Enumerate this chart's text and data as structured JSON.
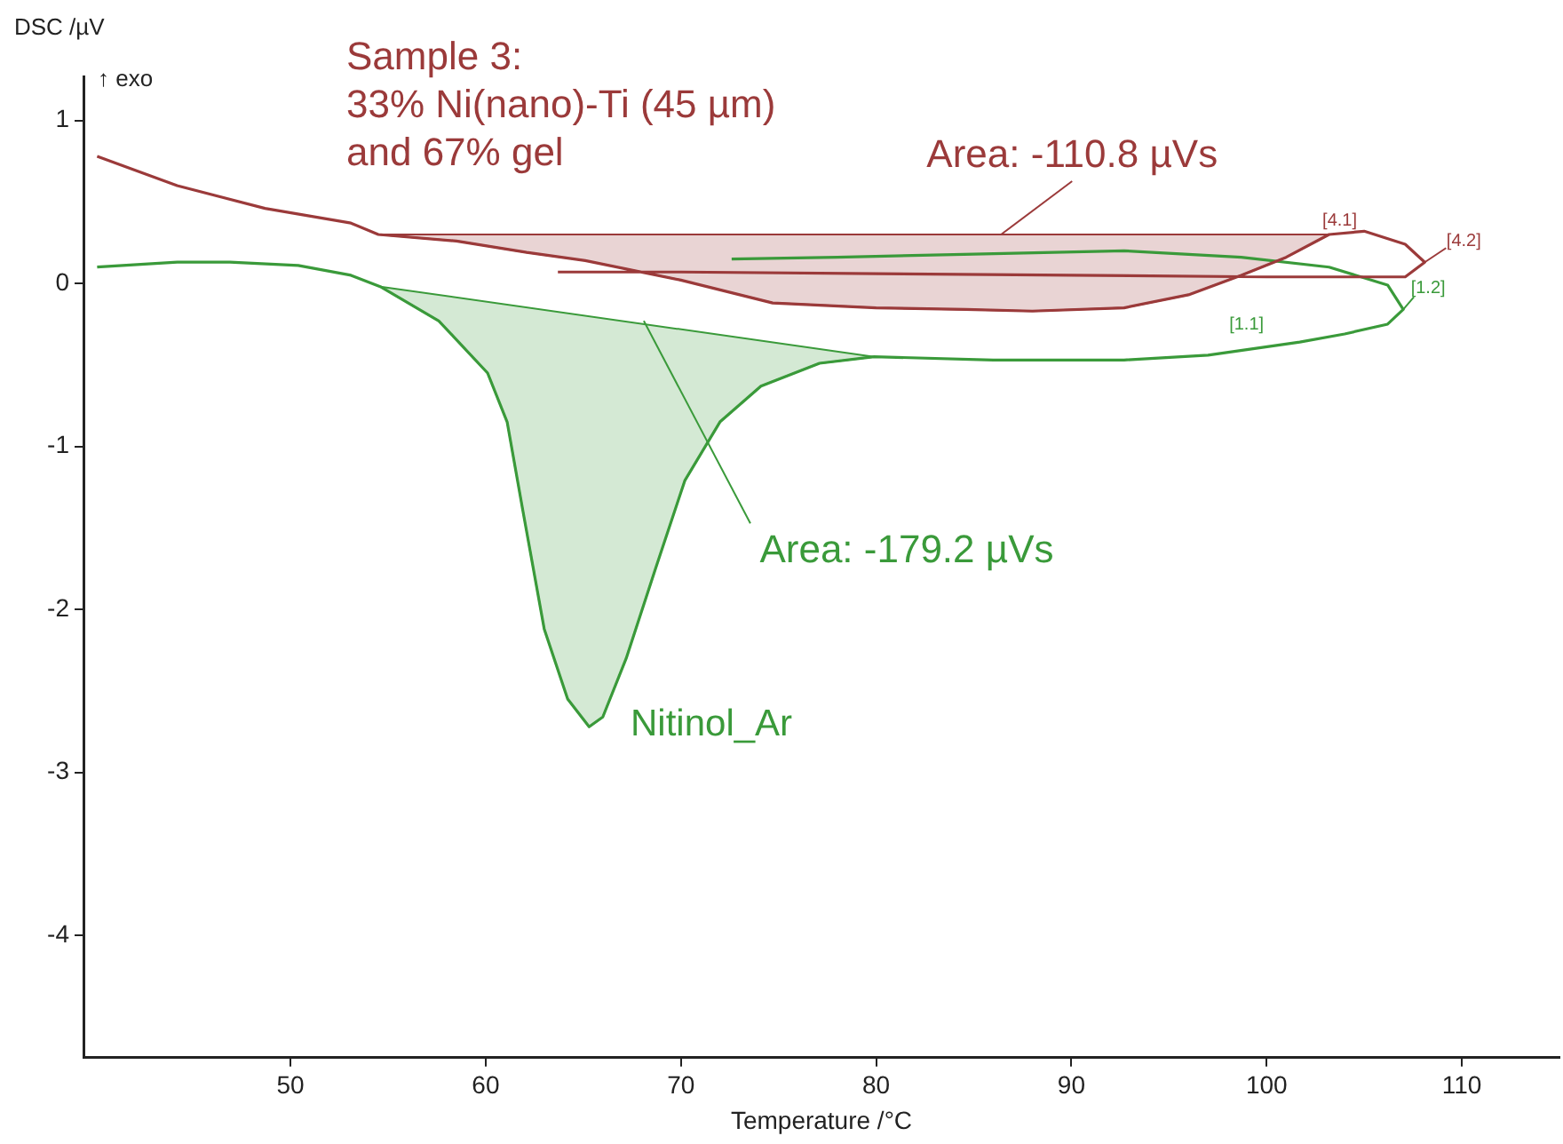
{
  "chart_data": {
    "type": "scatter",
    "xlabel": "Temperature /°C",
    "ylabel": "DSC /µV",
    "xlim": [
      39.4,
      115
    ],
    "ylim": [
      -4.75,
      1.27
    ],
    "xticks": [
      50,
      60,
      70,
      80,
      90,
      100,
      110
    ],
    "yticks": [
      -4,
      -3,
      -2,
      -1,
      0,
      1
    ],
    "grid": false,
    "legend": false,
    "line_style": "solid",
    "marker": "none",
    "series": [
      {
        "type": "line",
        "name": "Sample 3:\n33% Ni(nano)-Ti (45 µm)\nand 67% gel",
        "color": "#9b3a3a",
        "x": [
          40.1,
          44.2,
          48.7,
          53.1,
          54.5,
          58.5,
          62.1,
          65.1,
          70,
          74.7,
          80,
          84.6,
          88,
          92.7,
          96,
          98.7,
          101,
          103.2,
          105,
          107.1,
          108.1,
          107.1,
          100,
          90,
          80,
          70,
          63.7
        ],
        "values": [
          0.78,
          0.6,
          0.46,
          0.37,
          0.3,
          0.26,
          0.19,
          0.14,
          0.02,
          -0.12,
          -0.15,
          -0.16,
          -0.17,
          -0.15,
          -0.07,
          0.05,
          0.16,
          0.3,
          0.32,
          0.24,
          0.13,
          0.04,
          0.04,
          0.05,
          0.06,
          0.07,
          0.07
        ]
      },
      {
        "type": "line",
        "name": "Nitinol_Ar",
        "color": "#3a9a3a",
        "x": [
          40.1,
          44.2,
          46.9,
          50.4,
          53.1,
          54.6,
          57.6,
          60.1,
          61.1,
          61.9,
          63,
          64.2,
          65.3,
          66,
          67.2,
          68.7,
          70.2,
          72,
          74.1,
          77.1,
          79.9,
          86,
          92.7,
          97,
          101.7,
          104,
          106.2,
          107,
          106.2,
          103.2,
          98.7,
          92.7,
          85,
          78,
          72.6
        ],
        "values": [
          0.1,
          0.13,
          0.13,
          0.11,
          0.05,
          -0.02,
          -0.23,
          -0.55,
          -0.85,
          -1.39,
          -2.12,
          -2.55,
          -2.72,
          -2.66,
          -2.3,
          -1.75,
          -1.21,
          -0.85,
          -0.63,
          -0.49,
          -0.45,
          -0.47,
          -0.47,
          -0.44,
          -0.36,
          -0.31,
          -0.25,
          -0.16,
          -0.01,
          0.1,
          0.16,
          0.2,
          0.18,
          0.16,
          0.15
        ]
      },
      {
        "type": "area",
        "color": "#9b3a3a",
        "x": [
          54.5,
          58.5,
          62.1,
          65.1,
          70,
          74.7,
          80,
          84.6,
          88,
          92.7,
          96,
          98.7,
          101,
          103.2,
          54.5
        ],
        "values": [
          0.3,
          0.26,
          0.19,
          0.14,
          0.02,
          -0.12,
          -0.15,
          -0.16,
          -0.17,
          -0.15,
          -0.07,
          0.05,
          0.16,
          0.3,
          0.3
        ]
      },
      {
        "type": "area",
        "color": "#3a9a3a",
        "x": [
          54.6,
          57.6,
          60.1,
          61.1,
          61.9,
          63,
          64.2,
          65.3,
          66,
          67.2,
          68.7,
          70.2,
          72,
          74.1,
          77.1,
          79.9,
          54.6
        ],
        "values": [
          -0.02,
          -0.23,
          -0.55,
          -0.85,
          -1.39,
          -2.12,
          -2.55,
          -2.72,
          -2.66,
          -2.3,
          -1.75,
          -1.21,
          -0.85,
          -0.63,
          -0.49,
          -0.45,
          -0.02
        ]
      }
    ],
    "annotations": [
      {
        "text": "Area: -110.8 µVs",
        "x": 86.4,
        "y": 0.3
      },
      {
        "text": "Area: -179.2 µVs",
        "x": 68.1,
        "y": -0.23
      },
      {
        "text": "[4.1]",
        "x": 103.2,
        "y": 0.3
      },
      {
        "text": "[4.2]",
        "x": 108.1,
        "y": 0.13
      },
      {
        "text": "[1.1]",
        "x": 101.7,
        "y": -0.36
      },
      {
        "text": "[1.2]",
        "x": 107,
        "y": -0.16
      },
      "↑ exo"
    ]
  }
}
